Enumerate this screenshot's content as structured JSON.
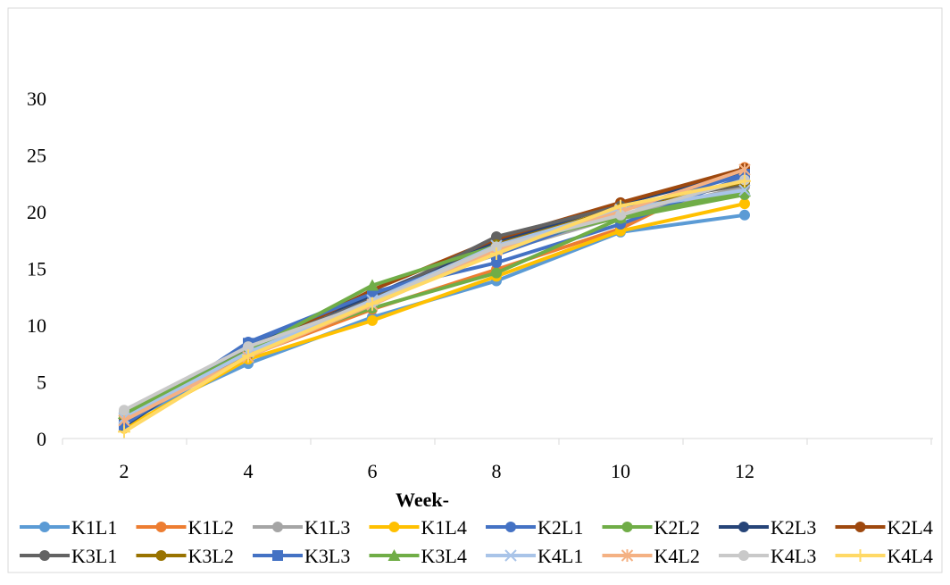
{
  "chart_data": {
    "type": "line",
    "title": "",
    "xlabel": "Week-",
    "ylabel": "",
    "ylim": [
      0,
      30
    ],
    "yticks": [
      0,
      5,
      10,
      15,
      20,
      25,
      30
    ],
    "categories": [
      "2",
      "4",
      "6",
      "8",
      "10",
      "12"
    ],
    "grid": false,
    "legend_position": "bottom",
    "series": [
      {
        "name": "K1L1",
        "color": "#5B9BD5",
        "marker": "circle",
        "values": [
          1.5,
          6.6,
          10.7,
          13.9,
          18.2,
          19.7
        ]
      },
      {
        "name": "K1L2",
        "color": "#ED7D31",
        "marker": "circle",
        "values": [
          1.9,
          7.3,
          11.4,
          14.9,
          18.5,
          23.9
        ]
      },
      {
        "name": "K1L3",
        "color": "#A5A5A5",
        "marker": "circle",
        "values": [
          2.4,
          8.0,
          12.0,
          16.4,
          19.6,
          22.2
        ]
      },
      {
        "name": "K1L4",
        "color": "#FFC000",
        "marker": "circle",
        "values": [
          0.9,
          7.0,
          10.4,
          14.3,
          18.3,
          20.7
        ]
      },
      {
        "name": "K2L1",
        "color": "#4472C4",
        "marker": "circle",
        "values": [
          1.3,
          8.5,
          12.9,
          15.5,
          18.9,
          23.1
        ]
      },
      {
        "name": "K2L2",
        "color": "#70AD47",
        "marker": "circle",
        "values": [
          2.0,
          7.8,
          11.5,
          14.6,
          19.4,
          21.5
        ]
      },
      {
        "name": "K2L3",
        "color": "#264478",
        "marker": "circle",
        "values": [
          1.1,
          8.3,
          12.6,
          17.3,
          20.7,
          23.5
        ]
      },
      {
        "name": "K2L4",
        "color": "#9E480E",
        "marker": "circle",
        "values": [
          1.7,
          7.5,
          13.1,
          17.6,
          20.8,
          23.8
        ]
      },
      {
        "name": "K3L1",
        "color": "#636363",
        "marker": "circle",
        "values": [
          1.4,
          7.9,
          12.3,
          17.8,
          20.5,
          22.4
        ]
      },
      {
        "name": "K3L2",
        "color": "#997300",
        "marker": "circle",
        "values": [
          1.6,
          7.4,
          12.1,
          17.1,
          20.3,
          22.6
        ]
      },
      {
        "name": "K3L3",
        "color": "#4472C4",
        "marker": "square",
        "values": [
          1.2,
          8.4,
          12.8,
          16.2,
          20.1,
          23.3
        ]
      },
      {
        "name": "K3L4",
        "color": "#70AD47",
        "marker": "triangle",
        "values": [
          2.2,
          7.7,
          13.5,
          17.0,
          19.5,
          21.8
        ]
      },
      {
        "name": "K4L1",
        "color": "#A9C4E8",
        "marker": "x",
        "values": [
          1.8,
          7.6,
          12.2,
          17.0,
          20.2,
          21.9
        ]
      },
      {
        "name": "K4L2",
        "color": "#F4B183",
        "marker": "star",
        "values": [
          1.6,
          7.2,
          11.8,
          16.6,
          20.0,
          23.7
        ]
      },
      {
        "name": "K4L3",
        "color": "#C9C9C9",
        "marker": "circle",
        "values": [
          2.5,
          8.1,
          12.0,
          16.9,
          19.7,
          22.8
        ]
      },
      {
        "name": "K4L4",
        "color": "#FFD966",
        "marker": "plus",
        "values": [
          0.6,
          7.3,
          11.9,
          16.3,
          20.5,
          22.7
        ]
      }
    ]
  }
}
